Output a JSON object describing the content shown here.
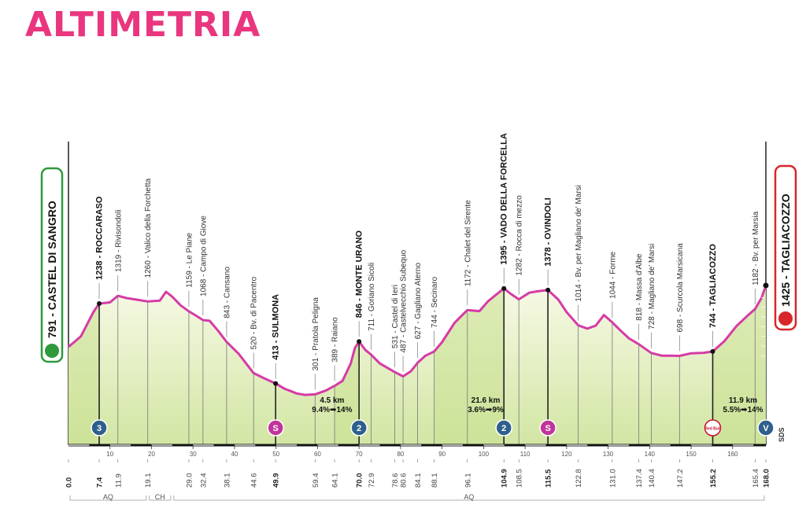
{
  "title": "ALTIMETRIA",
  "colors": {
    "title": "#e9367f",
    "profile_line": "#d63ba6",
    "fill_top": "#f7f9e6",
    "fill_bottom": "#d2e6a3",
    "start_border": "#2e9a3c",
    "finish_border": "#d8262b",
    "km_badge": "#2f5f8c",
    "sprint_badge": "#c1349a"
  },
  "start": {
    "label": "791 - CASTEL DI SANGRO"
  },
  "finish": {
    "label": "1425 - TAGLIACOZZO"
  },
  "sds_label": "SDS",
  "chart_data": {
    "type": "area",
    "x_unit": "km",
    "xlim": [
      0,
      168
    ],
    "x_ticks": [
      10,
      20,
      30,
      40,
      50,
      60,
      70,
      80,
      90,
      100,
      110,
      120,
      130,
      140,
      150,
      160
    ],
    "km_labels": [
      {
        "km": 0.0,
        "text": "0.0",
        "major": true
      },
      {
        "km": 7.4,
        "text": "7.4",
        "major": true
      },
      {
        "km": 11.9,
        "text": "11.9"
      },
      {
        "km": 19.1,
        "text": "19.1"
      },
      {
        "km": 29.0,
        "text": "29.0"
      },
      {
        "km": 32.4,
        "text": "32.4"
      },
      {
        "km": 38.1,
        "text": "38.1"
      },
      {
        "km": 44.6,
        "text": "44.6"
      },
      {
        "km": 49.9,
        "text": "49.9",
        "major": true
      },
      {
        "km": 59.4,
        "text": "59.4"
      },
      {
        "km": 64.1,
        "text": "64.1"
      },
      {
        "km": 70.0,
        "text": "70.0",
        "major": true
      },
      {
        "km": 72.9,
        "text": "72.9"
      },
      {
        "km": 78.6,
        "text": "78.6"
      },
      {
        "km": 80.6,
        "text": "80.6"
      },
      {
        "km": 84.1,
        "text": "84.1"
      },
      {
        "km": 88.1,
        "text": "88.1"
      },
      {
        "km": 96.1,
        "text": "96.1"
      },
      {
        "km": 104.9,
        "text": "104.9",
        "major": true
      },
      {
        "km": 108.5,
        "text": "108.5"
      },
      {
        "km": 115.5,
        "text": "115.5",
        "major": true
      },
      {
        "km": 122.8,
        "text": "122.8"
      },
      {
        "km": 131.0,
        "text": "131.0"
      },
      {
        "km": 137.4,
        "text": "137.4"
      },
      {
        "km": 140.4,
        "text": "140.4"
      },
      {
        "km": 147.2,
        "text": "147.2"
      },
      {
        "km": 155.2,
        "text": "155.2",
        "major": true
      },
      {
        "km": 165.4,
        "text": "165.4"
      },
      {
        "km": 168.0,
        "text": "168.0",
        "major": true
      }
    ],
    "profile": [
      [
        0,
        791
      ],
      [
        3,
        900
      ],
      [
        6,
        1150
      ],
      [
        7.4,
        1238
      ],
      [
        10,
        1250
      ],
      [
        11.9,
        1319
      ],
      [
        14,
        1295
      ],
      [
        17,
        1275
      ],
      [
        19.1,
        1260
      ],
      [
        22,
        1268
      ],
      [
        23.5,
        1360
      ],
      [
        25,
        1310
      ],
      [
        27,
        1220
      ],
      [
        29.0,
        1159
      ],
      [
        30.5,
        1120
      ],
      [
        32.4,
        1068
      ],
      [
        34,
        1060
      ],
      [
        36,
        960
      ],
      [
        38.1,
        843
      ],
      [
        41,
        720
      ],
      [
        44.6,
        520
      ],
      [
        47,
        470
      ],
      [
        49.9,
        413
      ],
      [
        52,
        360
      ],
      [
        55,
        310
      ],
      [
        57,
        295
      ],
      [
        59.4,
        301
      ],
      [
        62,
        340
      ],
      [
        64.1,
        389
      ],
      [
        66,
        440
      ],
      [
        68,
        620
      ],
      [
        69,
        780
      ],
      [
        70.0,
        846
      ],
      [
        71.5,
        760
      ],
      [
        72.9,
        711
      ],
      [
        75,
        620
      ],
      [
        78.6,
        531
      ],
      [
        80.6,
        487
      ],
      [
        82.5,
        540
      ],
      [
        84.1,
        627
      ],
      [
        86,
        700
      ],
      [
        88.1,
        744
      ],
      [
        90,
        840
      ],
      [
        93,
        1040
      ],
      [
        96.1,
        1172
      ],
      [
        99,
        1160
      ],
      [
        101,
        1260
      ],
      [
        104.9,
        1395
      ],
      [
        106.5,
        1340
      ],
      [
        108.5,
        1282
      ],
      [
        111,
        1350
      ],
      [
        113,
        1365
      ],
      [
        115.5,
        1378
      ],
      [
        118,
        1280
      ],
      [
        120,
        1150
      ],
      [
        122.8,
        1014
      ],
      [
        125,
        980
      ],
      [
        127,
        1010
      ],
      [
        129,
        1120
      ],
      [
        131.0,
        1044
      ],
      [
        133,
        960
      ],
      [
        135,
        880
      ],
      [
        137.4,
        818
      ],
      [
        140.4,
        728
      ],
      [
        143,
        700
      ],
      [
        145,
        700
      ],
      [
        147.2,
        698
      ],
      [
        150,
        725
      ],
      [
        153,
        730
      ],
      [
        155.2,
        744
      ],
      [
        158,
        850
      ],
      [
        161,
        1010
      ],
      [
        163.5,
        1110
      ],
      [
        165.4,
        1182
      ],
      [
        167,
        1300
      ],
      [
        168.0,
        1425
      ]
    ],
    "markers": [
      {
        "km": 7.4,
        "elev": 1238,
        "label": "1238 - ROCCARASO",
        "major": true
      },
      {
        "km": 11.9,
        "elev": 1319,
        "label": "1319 - Rivisondoli"
      },
      {
        "km": 19.1,
        "elev": 1260,
        "label": "1260 - Valico della Forchetta"
      },
      {
        "km": 29.0,
        "elev": 1159,
        "label": "1159 - Le Piane"
      },
      {
        "km": 32.4,
        "elev": 1068,
        "label": "1068 - Campo di Giove"
      },
      {
        "km": 38.1,
        "elev": 843,
        "label": "843 - Cansano"
      },
      {
        "km": 44.6,
        "elev": 520,
        "label": "520 - Bv. di Pacentro"
      },
      {
        "km": 49.9,
        "elev": 413,
        "label": "413 - SULMONA",
        "major": true
      },
      {
        "km": 59.4,
        "elev": 301,
        "label": "301 - Pratola Peligna"
      },
      {
        "km": 64.1,
        "elev": 389,
        "label": "389 - Raiano"
      },
      {
        "km": 70.0,
        "elev": 846,
        "label": "846 - MONTE URANO",
        "major": true
      },
      {
        "km": 72.9,
        "elev": 711,
        "label": "711 - Goriano Sicoli"
      },
      {
        "km": 78.6,
        "elev": 531,
        "label": "531 - Castel di Ieri"
      },
      {
        "km": 80.6,
        "elev": 487,
        "label": "487 - Castelvecchio Subequo"
      },
      {
        "km": 84.1,
        "elev": 627,
        "label": "627 - Gagliano Aterno"
      },
      {
        "km": 88.1,
        "elev": 744,
        "label": "744 - Secinaro"
      },
      {
        "km": 96.1,
        "elev": 1172,
        "label": "1172 - Chalet del Sirente"
      },
      {
        "km": 104.9,
        "elev": 1395,
        "label": "1395 - VADO DELLA FORCELLA",
        "major": true
      },
      {
        "km": 108.5,
        "elev": 1282,
        "label": "1282 - Rocca di mezzo"
      },
      {
        "km": 115.5,
        "elev": 1378,
        "label": "1378 - OVINDOLI",
        "major": true
      },
      {
        "km": 122.8,
        "elev": 1014,
        "label": "1014 - Bv. per Magliano de' Marsi"
      },
      {
        "km": 131.0,
        "elev": 1044,
        "label": "1044 - Forme"
      },
      {
        "km": 137.4,
        "elev": 818,
        "label": "818 - Massa d'Albe"
      },
      {
        "km": 140.4,
        "elev": 728,
        "label": "728 - Magliano de' Marsi"
      },
      {
        "km": 147.2,
        "elev": 698,
        "label": "698 - Scurcola Marsicana"
      },
      {
        "km": 155.2,
        "elev": 744,
        "label": "744 - TAGLIACOZZO",
        "major": true
      },
      {
        "km": 165.4,
        "elev": 1182,
        "label": "1182 - Bv. per Marsia"
      }
    ],
    "badges": [
      {
        "km": 7.4,
        "type": "gpm",
        "label": "3"
      },
      {
        "km": 49.9,
        "type": "sprint",
        "label": "S"
      },
      {
        "km": 70.0,
        "type": "gpm",
        "label": "2"
      },
      {
        "km": 104.9,
        "type": "gpm",
        "label": "2"
      },
      {
        "km": 115.5,
        "type": "sprint",
        "label": "S"
      },
      {
        "km": 155.2,
        "type": "redbull",
        "label": "Red Bull"
      },
      {
        "km": 168.0,
        "type": "finish",
        "label": "V"
      }
    ],
    "climbs": [
      {
        "km": 63.5,
        "line1": "4.5 km",
        "line2": "9.4%➡14%"
      },
      {
        "km": 100.5,
        "line1": "21.6 km",
        "line2": "3.6%➡9%"
      },
      {
        "km": 162.5,
        "line1": "11.9 km",
        "line2": "5.5%➡14%"
      }
    ],
    "regions": [
      {
        "from": 0,
        "to": 19.1,
        "label": "AQ"
      },
      {
        "from": 19.1,
        "to": 25,
        "label": "CH"
      },
      {
        "from": 25,
        "to": 168,
        "label": "AQ"
      }
    ]
  }
}
